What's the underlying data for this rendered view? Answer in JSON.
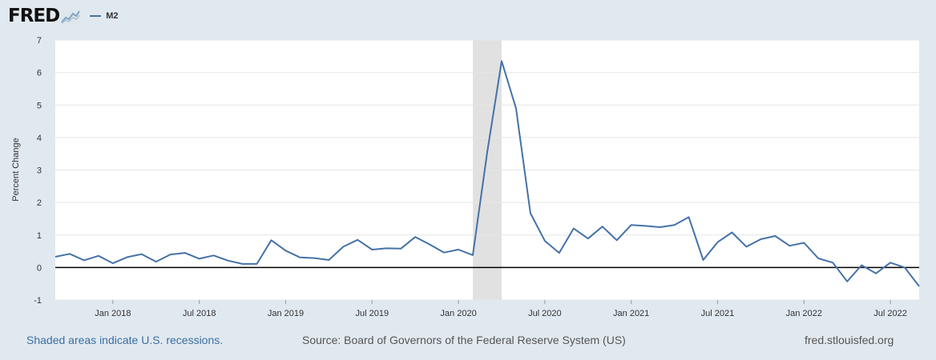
{
  "header": {
    "logo_text": "FRED",
    "logo_graph_icon": "trend-line-icon",
    "legend": [
      {
        "label": "M2",
        "color": "#4572a7"
      }
    ]
  },
  "chart_data": {
    "type": "line",
    "ylabel": "Percent Change",
    "ylim": [
      -1,
      7
    ],
    "yticks": [
      -1,
      0,
      1,
      2,
      3,
      4,
      5,
      6,
      7
    ],
    "xlabels": [
      "Jan 2018",
      "Jul 2018",
      "Jan 2019",
      "Jul 2019",
      "Jan 2020",
      "Jul 2020",
      "Jan 2021",
      "Jul 2021",
      "Jan 2022",
      "Jul 2022"
    ],
    "grid": true,
    "zero_line": true,
    "recession": {
      "start": "2020-02",
      "end": "2020-04"
    },
    "series": [
      {
        "name": "M2",
        "color": "#4572a7",
        "x": [
          "2017-09",
          "2017-10",
          "2017-11",
          "2017-12",
          "2018-01",
          "2018-02",
          "2018-03",
          "2018-04",
          "2018-05",
          "2018-06",
          "2018-07",
          "2018-08",
          "2018-09",
          "2018-10",
          "2018-11",
          "2018-12",
          "2019-01",
          "2019-02",
          "2019-03",
          "2019-04",
          "2019-05",
          "2019-06",
          "2019-07",
          "2019-08",
          "2019-09",
          "2019-10",
          "2019-11",
          "2019-12",
          "2020-01",
          "2020-02",
          "2020-03",
          "2020-04",
          "2020-05",
          "2020-06",
          "2020-07",
          "2020-08",
          "2020-09",
          "2020-10",
          "2020-11",
          "2020-12",
          "2021-01",
          "2021-02",
          "2021-03",
          "2021-04",
          "2021-05",
          "2021-06",
          "2021-07",
          "2021-08",
          "2021-09",
          "2021-10",
          "2021-11",
          "2021-12",
          "2022-01",
          "2022-02",
          "2022-03",
          "2022-04",
          "2022-05",
          "2022-06",
          "2022-07",
          "2022-08",
          "2022-09"
        ],
        "values": [
          0.33,
          0.42,
          0.22,
          0.36,
          0.13,
          0.32,
          0.41,
          0.18,
          0.4,
          0.45,
          0.27,
          0.37,
          0.21,
          0.11,
          0.11,
          0.84,
          0.52,
          0.31,
          0.29,
          0.23,
          0.64,
          0.85,
          0.55,
          0.59,
          0.58,
          0.94,
          0.71,
          0.46,
          0.55,
          0.38,
          3.55,
          6.35,
          4.9,
          1.67,
          0.82,
          0.45,
          1.2,
          0.89,
          1.26,
          0.84,
          1.31,
          1.28,
          1.24,
          1.31,
          1.55,
          0.23,
          0.78,
          1.08,
          0.64,
          0.87,
          0.97,
          0.67,
          0.76,
          0.28,
          0.15,
          -0.43,
          0.07,
          -0.18,
          0.15,
          0.0,
          -0.58
        ]
      }
    ]
  },
  "footer": {
    "left": "Shaded areas indicate U.S. recessions.",
    "middle": "Source: Board of Governors of the Federal Reserve System (US)",
    "right": "fred.stlouisfed.org"
  }
}
